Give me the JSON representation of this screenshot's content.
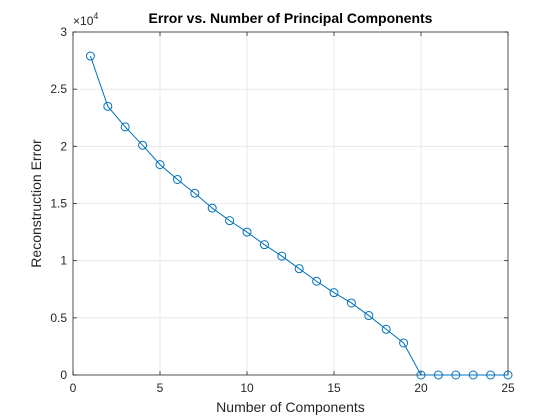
{
  "chart_data": {
    "type": "line",
    "title": "Error vs. Number of Principal Components",
    "xlabel": "Number of Components",
    "ylabel": "Reconstruction Error",
    "xlim": [
      0,
      25
    ],
    "ylim": [
      0,
      30000
    ],
    "xticks": [
      0,
      5,
      10,
      15,
      20,
      25
    ],
    "yticks": [
      0,
      5000,
      10000,
      15000,
      20000,
      25000,
      30000
    ],
    "xtick_labels": [
      "0",
      "5",
      "10",
      "15",
      "20",
      "25"
    ],
    "ytick_labels": [
      "0",
      "0.5",
      "1",
      "1.5",
      "2",
      "2.5",
      "3"
    ],
    "y_exponent_base": "10",
    "y_exponent_power": "4",
    "y_exponent_prefix": "×",
    "grid": true,
    "marker": "circle",
    "series": [
      {
        "color": "#0072bd",
        "x": [
          1,
          2,
          3,
          4,
          5,
          6,
          7,
          8,
          9,
          10,
          11,
          12,
          13,
          14,
          15,
          16,
          17,
          18,
          19,
          20,
          21,
          22,
          23,
          24,
          25
        ],
        "values": [
          27900,
          23500,
          21700,
          20100,
          18400,
          17100,
          15900,
          14600,
          13500,
          12500,
          11400,
          10400,
          9300,
          8200,
          7200,
          6300,
          5200,
          4000,
          2800,
          0,
          0,
          0,
          0,
          0,
          0
        ]
      }
    ]
  }
}
